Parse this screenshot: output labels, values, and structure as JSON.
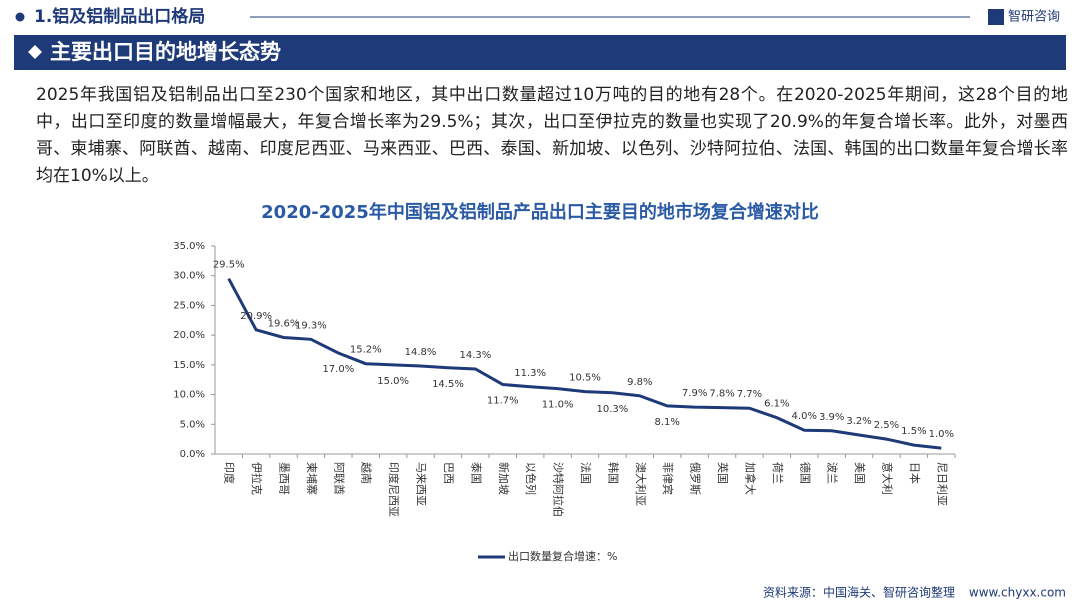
{
  "header": {
    "section": "1.铝及铝制品出口格局",
    "brand": "智研咨询",
    "title": "主要出口目的地增长态势"
  },
  "paragraph": "2025年我国铝及铝制品出口至230个国家和地区，其中出口数量超过10万吨的目的地有28个。在2020-2025年期间，这28个目的地中，出口至印度的数量增幅最大，年复合增长率为29.5%；其次，出口至伊拉克的数量也实现了20.9%的年复合增长率。此外，对墨西哥、柬埔寨、阿联酋、越南、印度尼西亚、马来西亚、巴西、泰国、新加坡、以色列、沙特阿拉伯、法国、韩国的出口数量年复合增长率均在10%以上。",
  "chart_data": {
    "type": "line",
    "title": "2020-2025年中国铝及铝制品产品出口主要目的地市场复合增速对比",
    "categories": [
      "印度",
      "伊拉克",
      "墨西哥",
      "柬埔寨",
      "阿联酋",
      "越南",
      "印度尼西亚",
      "马来西亚",
      "巴西",
      "泰国",
      "新加坡",
      "以色列",
      "沙特阿拉伯",
      "法国",
      "韩国",
      "澳大利亚",
      "菲律宾",
      "俄罗斯",
      "英国",
      "加拿大",
      "荷兰",
      "德国",
      "波兰",
      "美国",
      "意大利",
      "日本",
      "尼日利亚"
    ],
    "series": [
      {
        "name": "出口数量复合增速：%",
        "color": "#1f3a78",
        "values": [
          29.5,
          20.9,
          19.6,
          19.3,
          17.0,
          15.2,
          15.0,
          14.8,
          14.5,
          14.3,
          11.7,
          11.3,
          11.0,
          10.5,
          10.3,
          9.8,
          8.1,
          7.9,
          7.8,
          7.7,
          6.1,
          4.0,
          3.9,
          3.2,
          2.5,
          1.5,
          1.0
        ],
        "value_labels": [
          "29.5%",
          "20.9%",
          "19.6%",
          "19.3%",
          "17.0%",
          "15.2%",
          "15.0%",
          "14.8%",
          "14.5%",
          "14.3%",
          "11.7%",
          "11.3%",
          "11.0%",
          "10.5%",
          "10.3%",
          "9.8%",
          "8.1%",
          "7.9%",
          "7.8%",
          "7.7%",
          "6.1%",
          "4.0%",
          "3.9%",
          "3.2%",
          "2.5%",
          "1.5%",
          "1.0%"
        ]
      }
    ],
    "ylim": [
      0,
      35
    ],
    "yticks": [
      {
        "value": 0,
        "label": "0.0%"
      },
      {
        "value": 5,
        "label": "5.0%"
      },
      {
        "value": 10,
        "label": "10.0%"
      },
      {
        "value": 15,
        "label": "15.0%"
      },
      {
        "value": 20,
        "label": "20.0%"
      },
      {
        "value": 25,
        "label": "25.0%"
      },
      {
        "value": 30,
        "label": "30.0%"
      },
      {
        "value": 35,
        "label": "35.0%"
      }
    ],
    "legend": "bottom"
  },
  "footer": {
    "source": "资料来源：中国海关、智研咨询整理",
    "site": "www.chyxx.com"
  }
}
